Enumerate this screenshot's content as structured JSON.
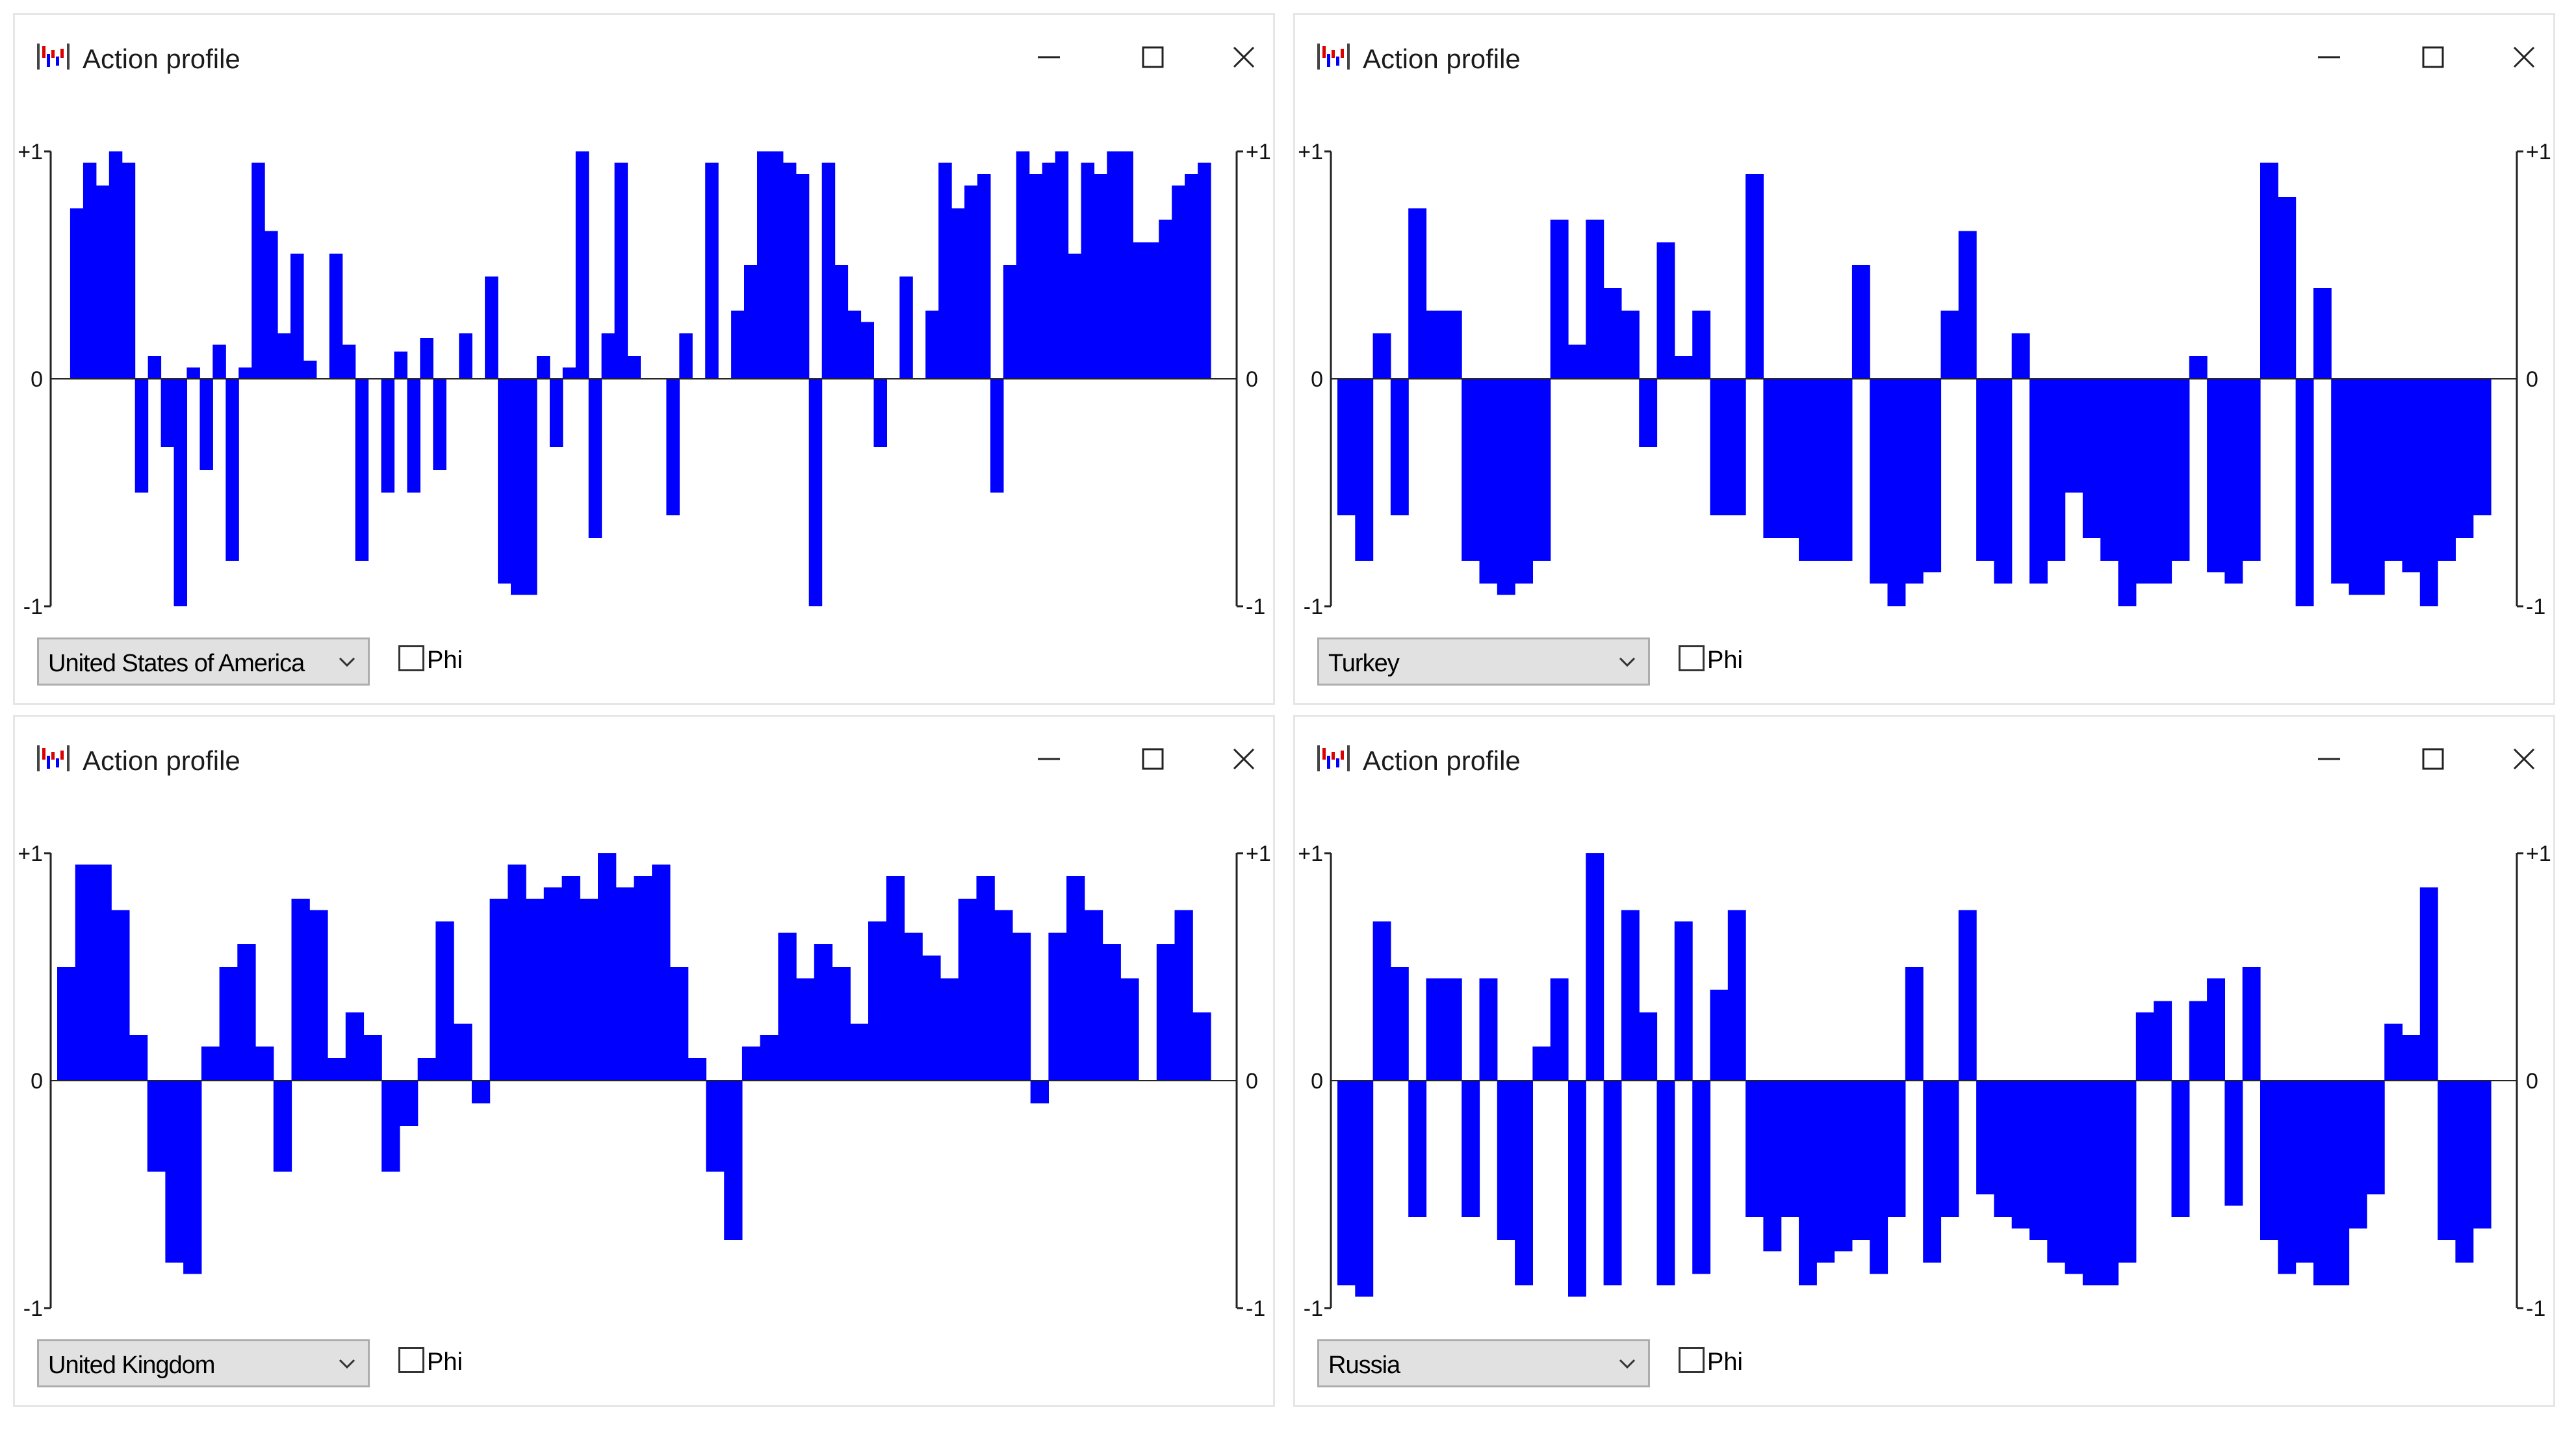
{
  "window_title": "Action profile",
  "phi_label": "Phi",
  "tick_labels": {
    "top": "+1",
    "zero": "0",
    "bottom": "-1"
  },
  "bar_color": "#0000ff",
  "icons": {
    "app": "action-profile-app-icon",
    "minimize": "minimize-icon",
    "maximize": "maximize-icon",
    "close": "close-icon",
    "dropdown": "chevron-down-icon"
  },
  "windows": [
    {
      "country": "United States of America",
      "phi_checked": false,
      "chart_data": {
        "type": "bar",
        "ylim": [
          -1,
          1
        ],
        "values": [
          0.0,
          0.75,
          0.95,
          0.85,
          1.0,
          0.95,
          -0.5,
          0.1,
          -0.3,
          -1.0,
          0.05,
          -0.4,
          0.15,
          -0.8,
          0.05,
          0.95,
          0.65,
          0.2,
          0.55,
          0.08,
          0.0,
          0.55,
          0.15,
          -0.8,
          0.0,
          -0.5,
          0.12,
          -0.5,
          0.18,
          -0.4,
          0.0,
          0.2,
          0.0,
          0.45,
          -0.9,
          -0.95,
          -0.95,
          0.1,
          -0.3,
          0.05,
          1.0,
          -0.7,
          0.2,
          0.95,
          0.1,
          0.0,
          0.0,
          -0.6,
          0.2,
          0.0,
          0.95,
          0.0,
          0.3,
          0.5,
          1.0,
          1.0,
          0.95,
          0.9,
          -1.0,
          0.95,
          0.5,
          0.3,
          0.25,
          -0.3,
          0.0,
          0.45,
          0.0,
          0.3,
          0.95,
          0.75,
          0.85,
          0.9,
          -0.5,
          0.5,
          1.0,
          0.9,
          0.95,
          1.0,
          0.55,
          0.95,
          0.9,
          1.0,
          1.0,
          0.6,
          0.6,
          0.7,
          0.85,
          0.9,
          0.95
        ]
      }
    },
    {
      "country": "Turkey",
      "phi_checked": false,
      "chart_data": {
        "type": "bar",
        "ylim": [
          -1,
          1
        ],
        "values": [
          -0.6,
          -0.8,
          0.2,
          -0.6,
          0.75,
          0.3,
          0.3,
          -0.8,
          -0.9,
          -0.95,
          -0.9,
          -0.8,
          0.7,
          0.15,
          0.7,
          0.4,
          0.3,
          -0.3,
          0.6,
          0.1,
          0.3,
          -0.6,
          -0.6,
          0.9,
          -0.7,
          -0.7,
          -0.8,
          -0.8,
          -0.8,
          0.5,
          -0.9,
          -1.0,
          -0.9,
          -0.85,
          0.3,
          0.65,
          -0.8,
          -0.9,
          0.2,
          -0.9,
          -0.8,
          -0.5,
          -0.7,
          -0.8,
          -1.0,
          -0.9,
          -0.9,
          -0.8,
          0.1,
          -0.85,
          -0.9,
          -0.8,
          0.95,
          0.8,
          -1.0,
          0.4,
          -0.9,
          -0.95,
          -0.95,
          -0.8,
          -0.85,
          -1.0,
          -0.8,
          -0.7,
          -0.6
        ]
      }
    },
    {
      "country": "United Kingdom",
      "phi_checked": false,
      "chart_data": {
        "type": "bar",
        "ylim": [
          -1,
          1
        ],
        "values": [
          0.5,
          0.95,
          0.95,
          0.75,
          0.2,
          -0.4,
          -0.8,
          -0.85,
          0.15,
          0.5,
          0.6,
          0.15,
          -0.4,
          0.8,
          0.75,
          0.1,
          0.3,
          0.2,
          -0.4,
          -0.2,
          0.1,
          0.7,
          0.25,
          -0.1,
          0.8,
          0.95,
          0.8,
          0.85,
          0.9,
          0.8,
          1.0,
          0.85,
          0.9,
          0.95,
          0.5,
          0.1,
          -0.4,
          -0.7,
          0.15,
          0.2,
          0.65,
          0.45,
          0.6,
          0.5,
          0.25,
          0.7,
          0.9,
          0.65,
          0.55,
          0.45,
          0.8,
          0.9,
          0.75,
          0.65,
          -0.1,
          0.65,
          0.9,
          0.75,
          0.6,
          0.45,
          0.0,
          0.6,
          0.75,
          0.3
        ]
      }
    },
    {
      "country": "Russia",
      "phi_checked": false,
      "chart_data": {
        "type": "bar",
        "ylim": [
          -1,
          1
        ],
        "values": [
          -0.9,
          -0.95,
          0.7,
          0.5,
          -0.6,
          0.45,
          0.45,
          -0.6,
          0.45,
          -0.7,
          -0.9,
          0.15,
          0.45,
          -0.95,
          1.0,
          -0.9,
          0.75,
          0.3,
          -0.9,
          0.7,
          -0.85,
          0.4,
          0.75,
          -0.6,
          -0.75,
          -0.6,
          -0.9,
          -0.8,
          -0.75,
          -0.7,
          -0.85,
          -0.6,
          0.5,
          -0.8,
          -0.6,
          0.75,
          -0.5,
          -0.6,
          -0.65,
          -0.7,
          -0.8,
          -0.85,
          -0.9,
          -0.9,
          -0.8,
          0.3,
          0.35,
          -0.6,
          0.35,
          0.45,
          -0.55,
          0.5,
          -0.7,
          -0.85,
          -0.8,
          -0.9,
          -0.9,
          -0.65,
          -0.5,
          0.25,
          0.2,
          0.85,
          -0.7,
          -0.8,
          -0.65
        ]
      }
    }
  ]
}
